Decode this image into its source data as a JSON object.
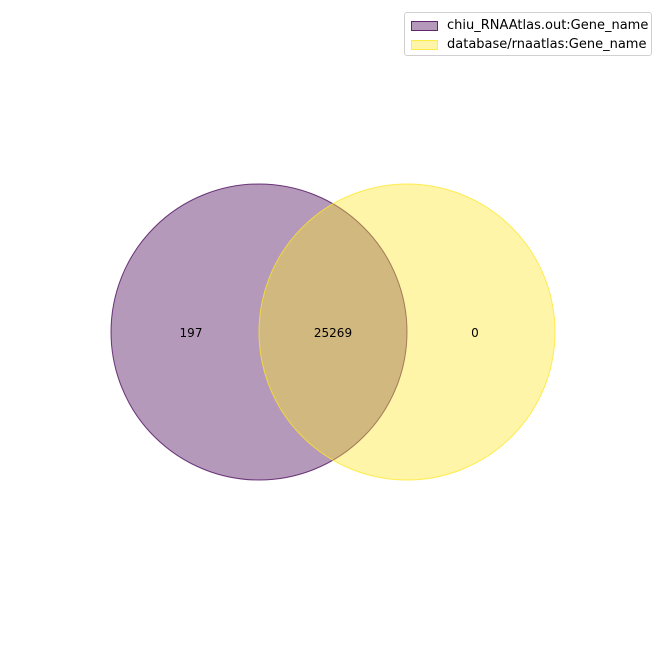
{
  "chart_data": {
    "type": "venn",
    "sets": [
      {
        "name": "chiu_RNAAtlas.out:Gene_name",
        "color": "#440154",
        "fill_alpha": 0.4
      },
      {
        "name": "database/rnaatlas:Gene_name",
        "color": "#fde725",
        "fill_alpha": 0.4
      }
    ],
    "regions": {
      "only_a": "197",
      "intersection": "25269",
      "only_b": "0"
    },
    "legend_position": "top-right"
  }
}
